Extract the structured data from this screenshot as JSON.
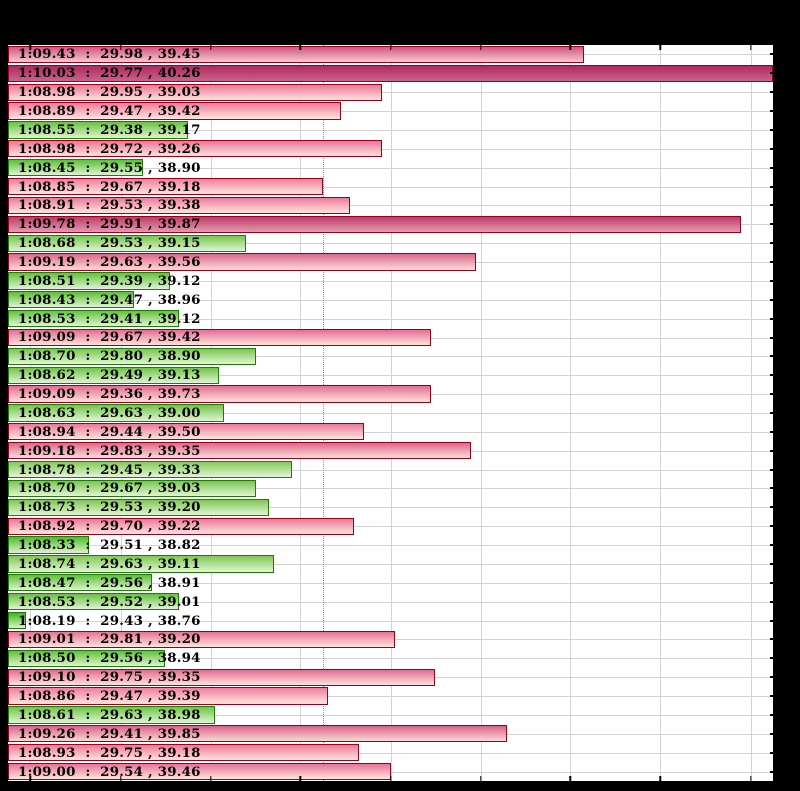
{
  "page": {
    "background": "#000000"
  },
  "chart_data": {
    "type": "bar",
    "orientation": "horizontal",
    "title": "",
    "label_format": "{time}  :  {split1} , {split2}",
    "bars": [
      {
        "time": "1:09.43",
        "split1": "29.98",
        "split2": "39.45"
      },
      {
        "time": "1:10.03",
        "split1": "29.77",
        "split2": "40.26"
      },
      {
        "time": "1:08.98",
        "split1": "29.95",
        "split2": "39.03"
      },
      {
        "time": "1:08.89",
        "split1": "29.47",
        "split2": "39.42"
      },
      {
        "time": "1:08.55",
        "split1": "29.38",
        "split2": "39.17"
      },
      {
        "time": "1:08.98",
        "split1": "29.72",
        "split2": "39.26"
      },
      {
        "time": "1:08.45",
        "split1": "29.55",
        "split2": "38.90"
      },
      {
        "time": "1:08.85",
        "split1": "29.67",
        "split2": "39.18"
      },
      {
        "time": "1:08.91",
        "split1": "29.53",
        "split2": "39.38"
      },
      {
        "time": "1:09.78",
        "split1": "29.91",
        "split2": "39.87"
      },
      {
        "time": "1:08.68",
        "split1": "29.53",
        "split2": "39.15"
      },
      {
        "time": "1:09.19",
        "split1": "29.63",
        "split2": "39.56"
      },
      {
        "time": "1:08.51",
        "split1": "29.39",
        "split2": "39.12"
      },
      {
        "time": "1:08.43",
        "split1": "29.47",
        "split2": "38.96"
      },
      {
        "time": "1:08.53",
        "split1": "29.41",
        "split2": "39.12"
      },
      {
        "time": "1:09.09",
        "split1": "29.67",
        "split2": "39.42"
      },
      {
        "time": "1:08.70",
        "split1": "29.80",
        "split2": "38.90"
      },
      {
        "time": "1:08.62",
        "split1": "29.49",
        "split2": "39.13"
      },
      {
        "time": "1:09.09",
        "split1": "29.36",
        "split2": "39.73"
      },
      {
        "time": "1:08.63",
        "split1": "29.63",
        "split2": "39.00"
      },
      {
        "time": "1:08.94",
        "split1": "29.44",
        "split2": "39.50"
      },
      {
        "time": "1:09.18",
        "split1": "29.83",
        "split2": "39.35"
      },
      {
        "time": "1:08.78",
        "split1": "29.45",
        "split2": "39.33"
      },
      {
        "time": "1:08.70",
        "split1": "29.67",
        "split2": "39.03"
      },
      {
        "time": "1:08.73",
        "split1": "29.53",
        "split2": "39.20"
      },
      {
        "time": "1:08.92",
        "split1": "29.70",
        "split2": "39.22"
      },
      {
        "time": "1:08.33",
        "split1": "29.51",
        "split2": "38.82"
      },
      {
        "time": "1:08.74",
        "split1": "29.63",
        "split2": "39.11"
      },
      {
        "time": "1:08.47",
        "split1": "29.56",
        "split2": "38.91"
      },
      {
        "time": "1:08.53",
        "split1": "29.52",
        "split2": "39.01"
      },
      {
        "time": "1:08.19",
        "split1": "29.43",
        "split2": "38.76"
      },
      {
        "time": "1:09.01",
        "split1": "29.81",
        "split2": "39.20"
      },
      {
        "time": "1:08.50",
        "split1": "29.56",
        "split2": "38.94"
      },
      {
        "time": "1:09.10",
        "split1": "29.75",
        "split2": "39.35"
      },
      {
        "time": "1:08.86",
        "split1": "29.47",
        "split2": "39.39"
      },
      {
        "time": "1:08.61",
        "split1": "29.63",
        "split2": "38.98"
      },
      {
        "time": "1:09.26",
        "split1": "29.41",
        "split2": "39.85"
      },
      {
        "time": "1:08.93",
        "split1": "29.75",
        "split2": "39.18"
      },
      {
        "time": "1:09.00",
        "split1": "29.54",
        "split2": "39.46"
      }
    ],
    "axis": {
      "min": 68.15,
      "max": 69.85,
      "tick_start": 68.2,
      "tick_step": 0.2,
      "tick_end": 69.8
    },
    "mean_line": 68.85,
    "grid": true,
    "legend_position": "none",
    "colors": {
      "pink_near": "#f07f9f",
      "pink_far": "#b02a62",
      "pink_border": "#9b0018",
      "pink_fade": "#ffe9e0",
      "green_near": "#8ccc60",
      "green_far": "#3db81a",
      "green_border": "#1f7c0a",
      "green_fade": "#effae6",
      "gridline": "#d2d2d2",
      "mean_line_color": "#8f8f8f",
      "tick": "#000000",
      "plot_background": "#ffffff",
      "label_text": "#000000",
      "page_background": "#000000"
    }
  }
}
